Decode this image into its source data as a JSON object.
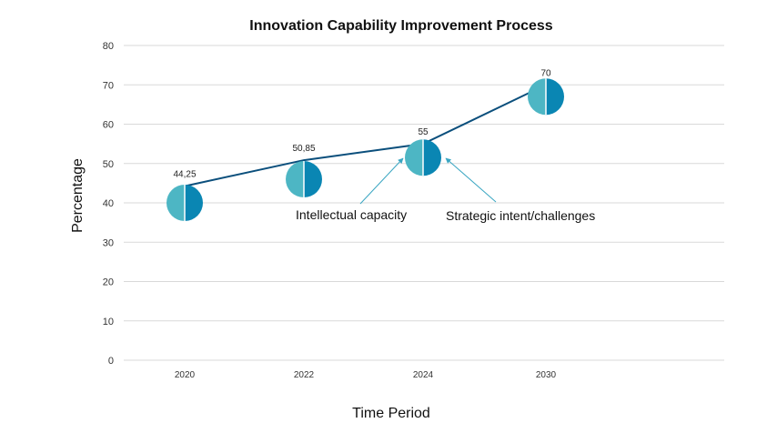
{
  "chart_data": {
    "type": "line",
    "title": "Innovation Capability Improvement Process",
    "xlabel": "Time Period",
    "ylabel": "Percentage",
    "ylim": [
      0,
      80
    ],
    "yticks": [
      0,
      10,
      20,
      30,
      40,
      50,
      60,
      70,
      80
    ],
    "grid": true,
    "categories": [
      "2020",
      "2022",
      "2024",
      "2030"
    ],
    "series": [
      {
        "values": [
          44.25,
          50.85,
          55,
          70
        ],
        "labels": [
          "44,25",
          "50,85",
          "55",
          "70"
        ],
        "bubble_centers": [
          40,
          46,
          51.5,
          67
        ]
      }
    ],
    "annotations": [
      {
        "text": "Intellectual capacity",
        "target_category": "2024"
      },
      {
        "text": "Strategic intent/challenges",
        "target_category": "2024"
      }
    ],
    "colors": {
      "line": "#0b4f7c",
      "bubble_left": "#4db6c4",
      "bubble_right": "#0a86b3",
      "arrow": "#3aa6c2",
      "grid": "#d9d9d9"
    }
  }
}
